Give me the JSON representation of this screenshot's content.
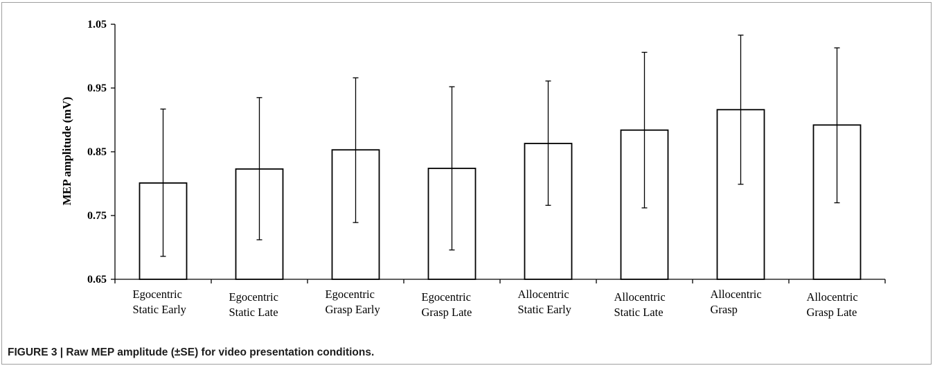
{
  "caption": "FIGURE 3 | Raw MEP amplitude (±SE) for video presentation conditions.",
  "chart_data": {
    "type": "bar",
    "title": "",
    "ylabel": "MEP amplitude (mV)",
    "xlabel": "",
    "ylim": [
      0.65,
      1.05
    ],
    "yticks": [
      "0.65",
      "0.75",
      "0.85",
      "0.95",
      "1.05"
    ],
    "grid": false,
    "legend": "none",
    "categories": [
      [
        "Egocentric",
        "Static Early"
      ],
      [
        "Egocentric",
        "Static Late"
      ],
      [
        "Egocentric",
        "Grasp Early"
      ],
      [
        "Egocentric",
        "Grasp Late"
      ],
      [
        "Allocentric",
        "Static Early"
      ],
      [
        "Allocentric",
        "Static Late"
      ],
      [
        "Allocentric",
        "Grasp"
      ],
      [
        "Allocentric",
        "Grasp Late"
      ]
    ],
    "values": [
      0.801,
      0.823,
      0.853,
      0.824,
      0.863,
      0.884,
      0.916,
      0.892
    ],
    "error_upper": [
      0.917,
      0.935,
      0.966,
      0.952,
      0.961,
      1.006,
      1.033,
      1.013
    ],
    "error_lower": [
      0.686,
      0.712,
      0.739,
      0.696,
      0.766,
      0.762,
      0.799,
      0.77
    ],
    "bar_fill": "#ffffff",
    "bar_stroke": "#000000"
  }
}
